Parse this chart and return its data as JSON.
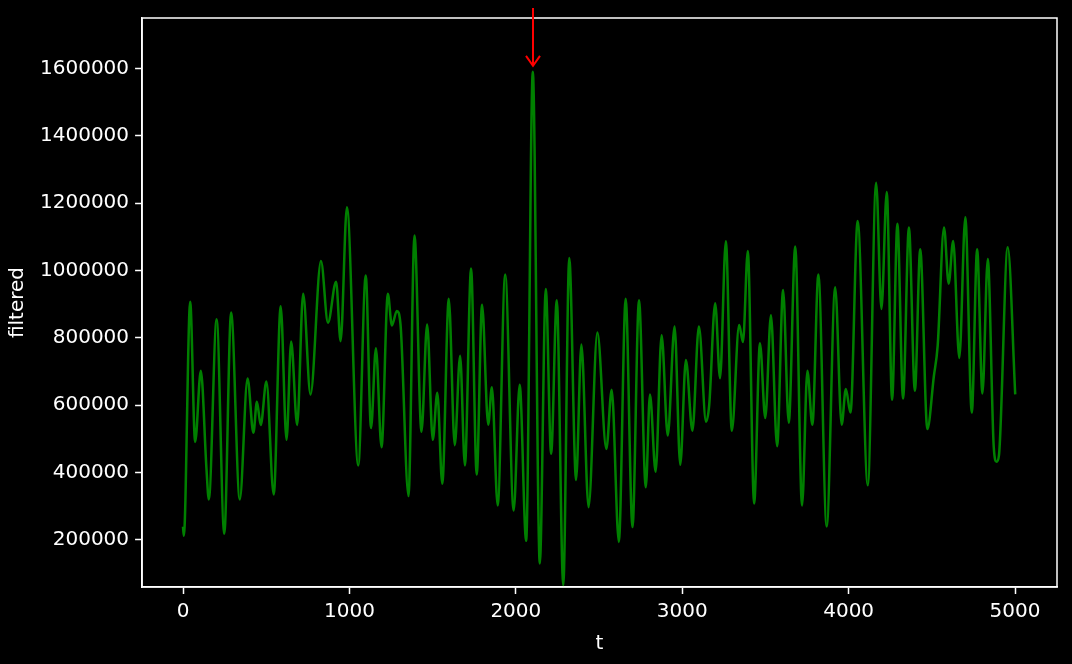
{
  "chart_data": {
    "type": "line",
    "xlabel": "t",
    "ylabel": "filtered",
    "x": [
      0,
      5,
      43,
      73,
      107,
      141,
      155,
      202,
      248,
      289,
      341,
      388,
      423,
      444,
      467,
      501,
      545,
      587,
      622,
      650,
      686,
      722,
      766,
      829,
      871,
      920,
      947,
      985,
      1053,
      1098,
      1130,
      1159,
      1193,
      1231,
      1255,
      1285,
      1307,
      1355,
      1391,
      1433,
      1467,
      1501,
      1528,
      1558,
      1597,
      1633,
      1665,
      1694,
      1731,
      1765,
      1797,
      1834,
      1856,
      1891,
      1936,
      1987,
      2023,
      2062,
      2102,
      2144,
      2180,
      2212,
      2246,
      2285,
      2321,
      2362,
      2394,
      2437,
      2490,
      2544,
      2576,
      2619,
      2660,
      2701,
      2740,
      2781,
      2806,
      2840,
      2876,
      2913,
      2954,
      2988,
      3022,
      3061,
      3100,
      3143,
      3162,
      3198,
      3227,
      3262,
      3298,
      3342,
      3365,
      3394,
      3432,
      3467,
      3499,
      3533,
      3570,
      3606,
      3640,
      3679,
      3720,
      3752,
      3782,
      3818,
      3868,
      3919,
      3958,
      3983,
      4011,
      4054,
      4115,
      4165,
      4197,
      4229,
      4261,
      4293,
      4327,
      4362,
      4398,
      4430,
      4473,
      4512,
      4535,
      4573,
      4601,
      4628,
      4665,
      4701,
      4740,
      4772,
      4804,
      4836,
      4872,
      4889,
      4903,
      4956,
      5001
    ],
    "series": [
      {
        "color": "#008000",
        "values": [
          239000,
          212000,
          907000,
          491000,
          702000,
          411000,
          320000,
          855000,
          218000,
          875000,
          320000,
          679000,
          518000,
          610000,
          541000,
          670000,
          335000,
          894000,
          497000,
          789000,
          541000,
          931000,
          632000,
          1028000,
          845000,
          967000,
          790000,
          1188000,
          421000,
          985000,
          532000,
          769000,
          475000,
          931000,
          837000,
          880000,
          840000,
          330000,
          1104000,
          521000,
          840000,
          497000,
          637000,
          367000,
          916000,
          481000,
          747000,
          421000,
          1006000,
          394000,
          898000,
          542000,
          653000,
          302000,
          988000,
          287000,
          661000,
          197000,
          1590000,
          130000,
          945000,
          456000,
          912000,
          65000,
          1037000,
          378000,
          780000,
          297000,
          816000,
          470000,
          646000,
          194000,
          916000,
          238000,
          912000,
          356000,
          632000,
          402000,
          808000,
          510000,
          834000,
          423000,
          734000,
          524000,
          834000,
          551000,
          600000,
          903000,
          680000,
          1087000,
          524000,
          838000,
          788000,
          1058000,
          308000,
          784000,
          562000,
          867000,
          478000,
          942000,
          548000,
          1071000,
          302000,
          702000,
          542000,
          988000,
          240000,
          950000,
          542000,
          648000,
          578000,
          1147000,
          362000,
          1261000,
          886000,
          1233000,
          616000,
          1139000,
          620000,
          1128000,
          643000,
          1063000,
          529000,
          686000,
          777000,
          1128000,
          961000,
          1088000,
          740000,
          1158000,
          578000,
          1063000,
          635000,
          1034000,
          475000,
          432000,
          450000,
          1069000,
          632000
        ]
      }
    ],
    "xlim": [
      -246,
      5252
    ],
    "ylim": [
      60000,
      1750000
    ],
    "xticks": [
      0,
      1000,
      2000,
      3000,
      4000,
      5000
    ],
    "yticks": [
      200000,
      400000,
      600000,
      800000,
      1000000,
      1200000,
      1400000,
      1600000
    ]
  }
}
